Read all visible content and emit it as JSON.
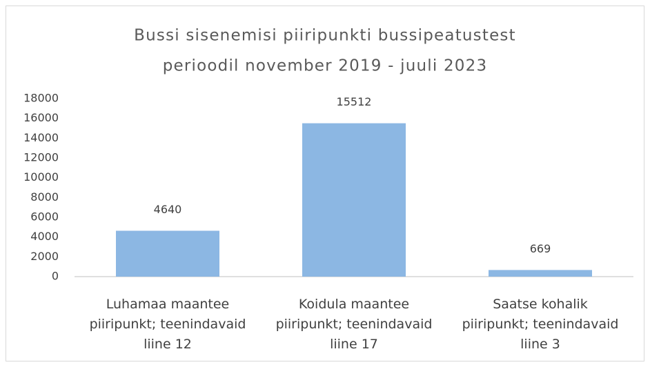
{
  "chart_data": {
    "type": "bar",
    "title": [
      "Bussi sisenemisi piiripunkti bussipeatustest",
      "perioodil november 2019 - juuli 2023"
    ],
    "categories": [
      "Luhamaa maantee piiripunkt; teenindavaid liine 12",
      "Koidula maantee piiripunkt; teenindavaid liine 17",
      "Saatse kohalik piiripunkt; teenindavaid liine 3"
    ],
    "values": [
      4640,
      15512,
      669
    ],
    "color": "#8cb7e3",
    "ylim": [
      0,
      18000
    ],
    "yticks": [
      0,
      2000,
      4000,
      6000,
      8000,
      10000,
      12000,
      14000,
      16000,
      18000
    ],
    "grid": false
  }
}
